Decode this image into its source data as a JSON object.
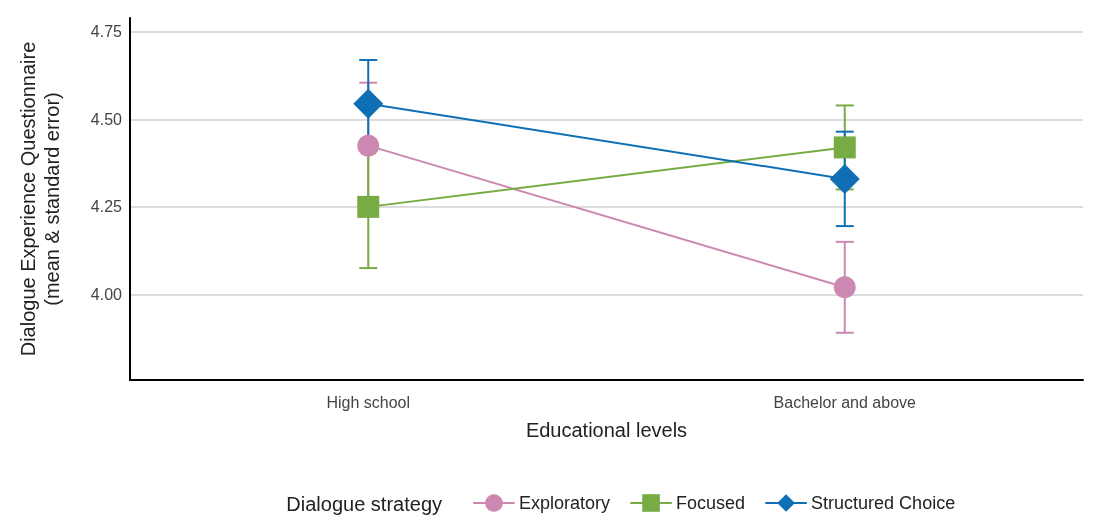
{
  "chart_data": {
    "type": "line",
    "xlabel": "Educational levels",
    "ylabel": "Dialogue Experience Questionnaire\n(mean & standard error)",
    "legend_title": "Dialogue strategy",
    "legend": "bottom",
    "grid": "y",
    "categories": [
      "High school",
      "Bachelor and above"
    ],
    "ylim": [
      3.755,
      4.79
    ],
    "yticks": [
      {
        "value": 4,
        "label": "4.00"
      },
      {
        "value": 4.25,
        "label": "4.25"
      },
      {
        "value": 4.5,
        "label": "4.50"
      },
      {
        "value": 4.75,
        "label": "4.75"
      }
    ],
    "series": [
      {
        "name": "Exploratory",
        "color": "#cc88b0",
        "marker": "circle",
        "values": [
          4.425,
          4.02
        ],
        "errors": [
          0.18,
          0.13
        ]
      },
      {
        "name": "Focused",
        "color": "#77ab43",
        "marker": "square",
        "values": [
          4.25,
          4.42
        ],
        "errors": [
          0.175,
          0.12
        ]
      },
      {
        "name": "Structured Choice",
        "color": "#0f6fb5",
        "marker": "diamond",
        "values": [
          4.545,
          4.33
        ],
        "errors": [
          0.125,
          0.135
        ]
      }
    ]
  }
}
